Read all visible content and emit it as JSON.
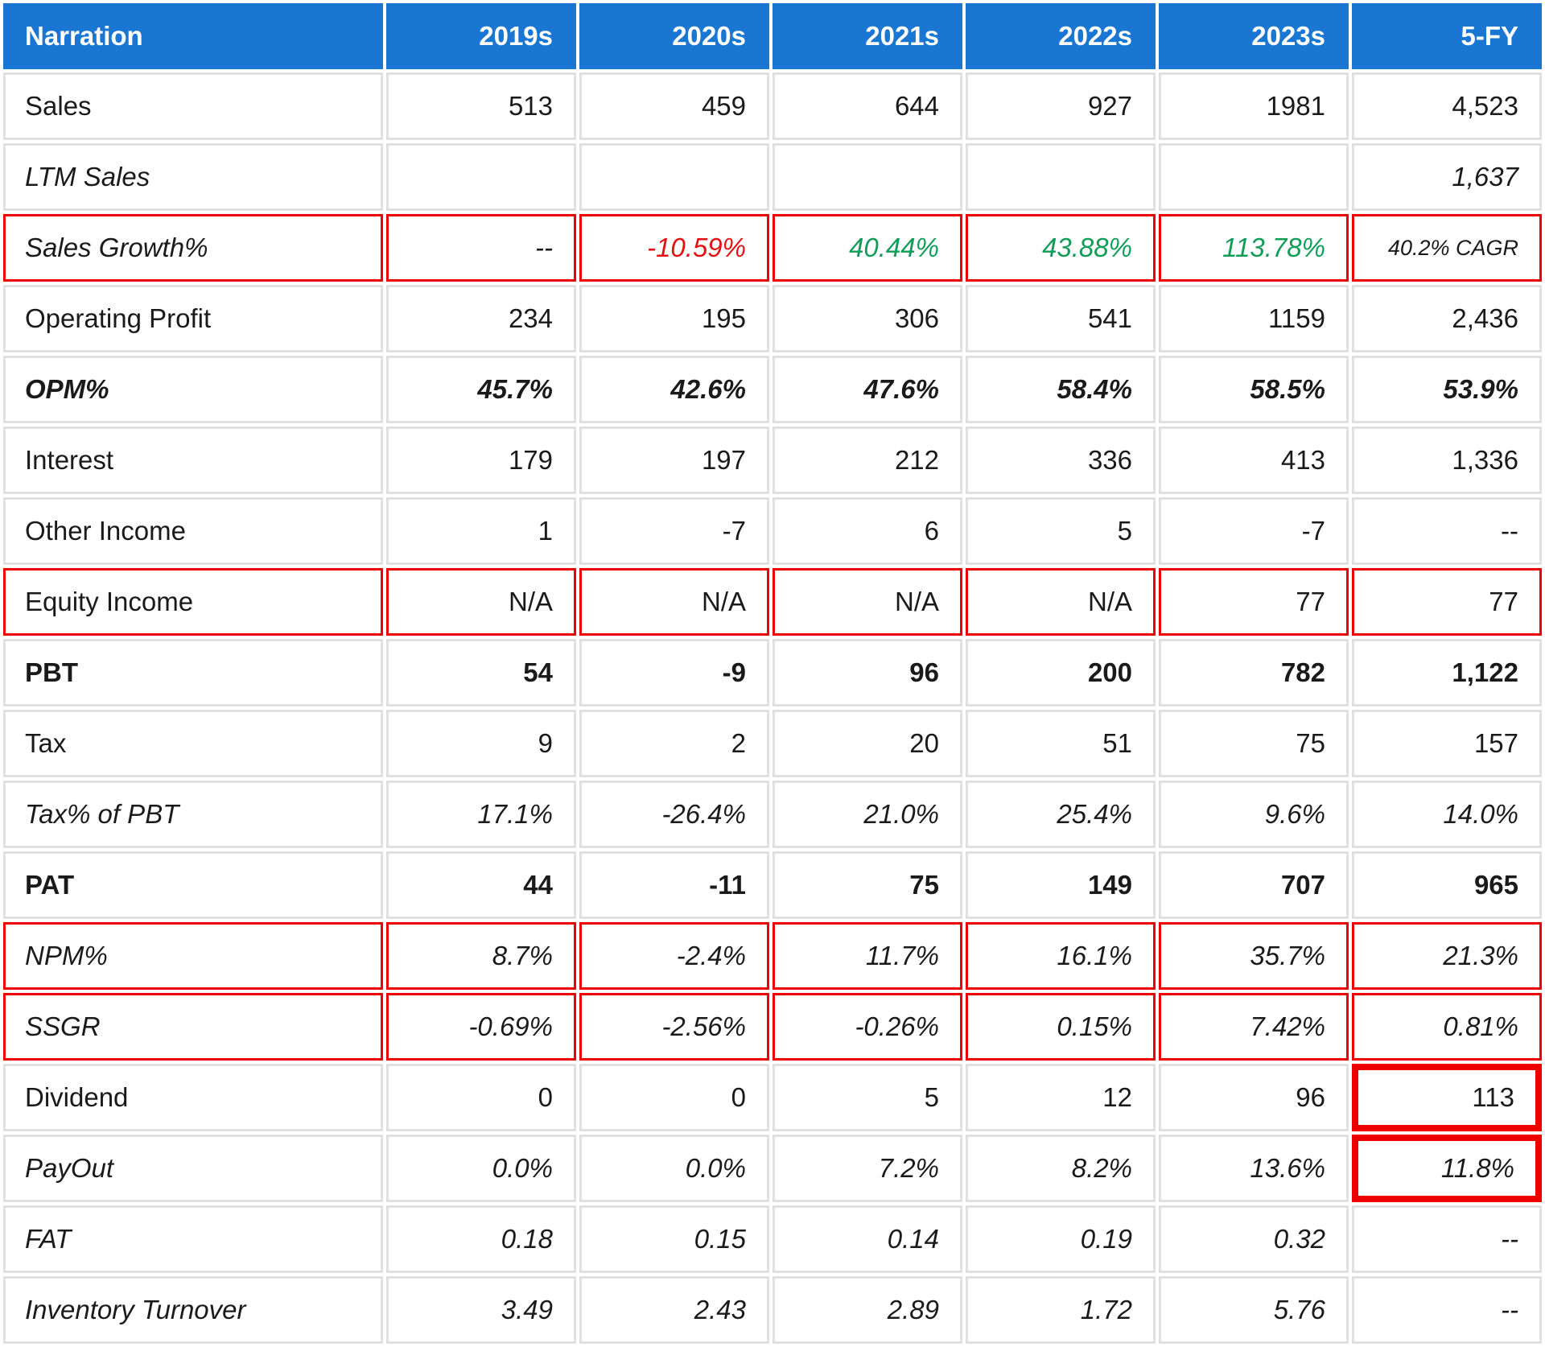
{
  "chart_data": {
    "type": "table",
    "columns": [
      "Narration",
      "2019s",
      "2020s",
      "2021s",
      "2022s",
      "2023s",
      "5-FY"
    ],
    "rows": [
      {
        "label": "Sales",
        "style": "regular",
        "values": [
          "513",
          "459",
          "644",
          "927",
          "1981",
          "4,523"
        ]
      },
      {
        "label": "LTM Sales",
        "style": "italic",
        "values": [
          "",
          "",
          "",
          "",
          "",
          "1,637"
        ]
      },
      {
        "label": "Sales Growth%",
        "style": "italic",
        "red_outline": true,
        "values": [
          "--",
          "-10.59%",
          "40.44%",
          "43.88%",
          "113.78%",
          "40.2% CAGR"
        ],
        "value_classes": [
          "",
          "neg",
          "pos",
          "pos",
          "pos",
          "cagr"
        ]
      },
      {
        "label": "Operating Profit",
        "style": "regular",
        "values": [
          "234",
          "195",
          "306",
          "541",
          "1159",
          "2,436"
        ]
      },
      {
        "label": "OPM%",
        "style": "bold-italic",
        "values": [
          "45.7%",
          "42.6%",
          "47.6%",
          "58.4%",
          "58.5%",
          "53.9%"
        ]
      },
      {
        "label": "Interest",
        "style": "regular",
        "values": [
          "179",
          "197",
          "212",
          "336",
          "413",
          "1,336"
        ]
      },
      {
        "label": "Other Income",
        "style": "regular",
        "values": [
          "1",
          "-7",
          "6",
          "5",
          "-7",
          "--"
        ]
      },
      {
        "label": "Equity Income",
        "style": "regular",
        "red_outline": true,
        "values": [
          "N/A",
          "N/A",
          "N/A",
          "N/A",
          "77",
          "77"
        ]
      },
      {
        "label": "PBT",
        "style": "bold",
        "values": [
          "54",
          "-9",
          "96",
          "200",
          "782",
          "1,122"
        ]
      },
      {
        "label": "Tax",
        "style": "regular",
        "values": [
          "9",
          "2",
          "20",
          "51",
          "75",
          "157"
        ]
      },
      {
        "label": "Tax% of PBT",
        "style": "italic",
        "values": [
          "17.1%",
          "-26.4%",
          "21.0%",
          "25.4%",
          "9.6%",
          "14.0%"
        ]
      },
      {
        "label": "PAT",
        "style": "bold",
        "values": [
          "44",
          "-11",
          "75",
          "149",
          "707",
          "965"
        ]
      },
      {
        "label": "NPM%",
        "style": "italic",
        "red_outline": true,
        "values": [
          "8.7%",
          "-2.4%",
          "11.7%",
          "16.1%",
          "35.7%",
          "21.3%"
        ]
      },
      {
        "label": "SSGR",
        "style": "italic",
        "red_outline": true,
        "values": [
          "-0.69%",
          "-2.56%",
          "-0.26%",
          "0.15%",
          "7.42%",
          "0.81%"
        ]
      },
      {
        "label": "Dividend",
        "style": "regular",
        "thick_last": true,
        "values": [
          "0",
          "0",
          "5",
          "12",
          "96",
          "113"
        ]
      },
      {
        "label": "PayOut",
        "style": "italic",
        "thick_last": true,
        "values": [
          "0.0%",
          "0.0%",
          "7.2%",
          "8.2%",
          "13.6%",
          "11.8%"
        ]
      },
      {
        "label": "FAT",
        "style": "italic",
        "values": [
          "0.18",
          "0.15",
          "0.14",
          "0.19",
          "0.32",
          "--"
        ]
      },
      {
        "label": "Inventory Turnover",
        "style": "italic",
        "values": [
          "3.49",
          "2.43",
          "2.89",
          "1.72",
          "5.76",
          "--"
        ]
      }
    ]
  },
  "colors": {
    "header_bg": "#1976d2",
    "header_text": "#ffffff",
    "grid": "#e0e0e0",
    "red_annotation": "#ee0000",
    "negative": "#e31212",
    "positive": "#0f9d58"
  }
}
